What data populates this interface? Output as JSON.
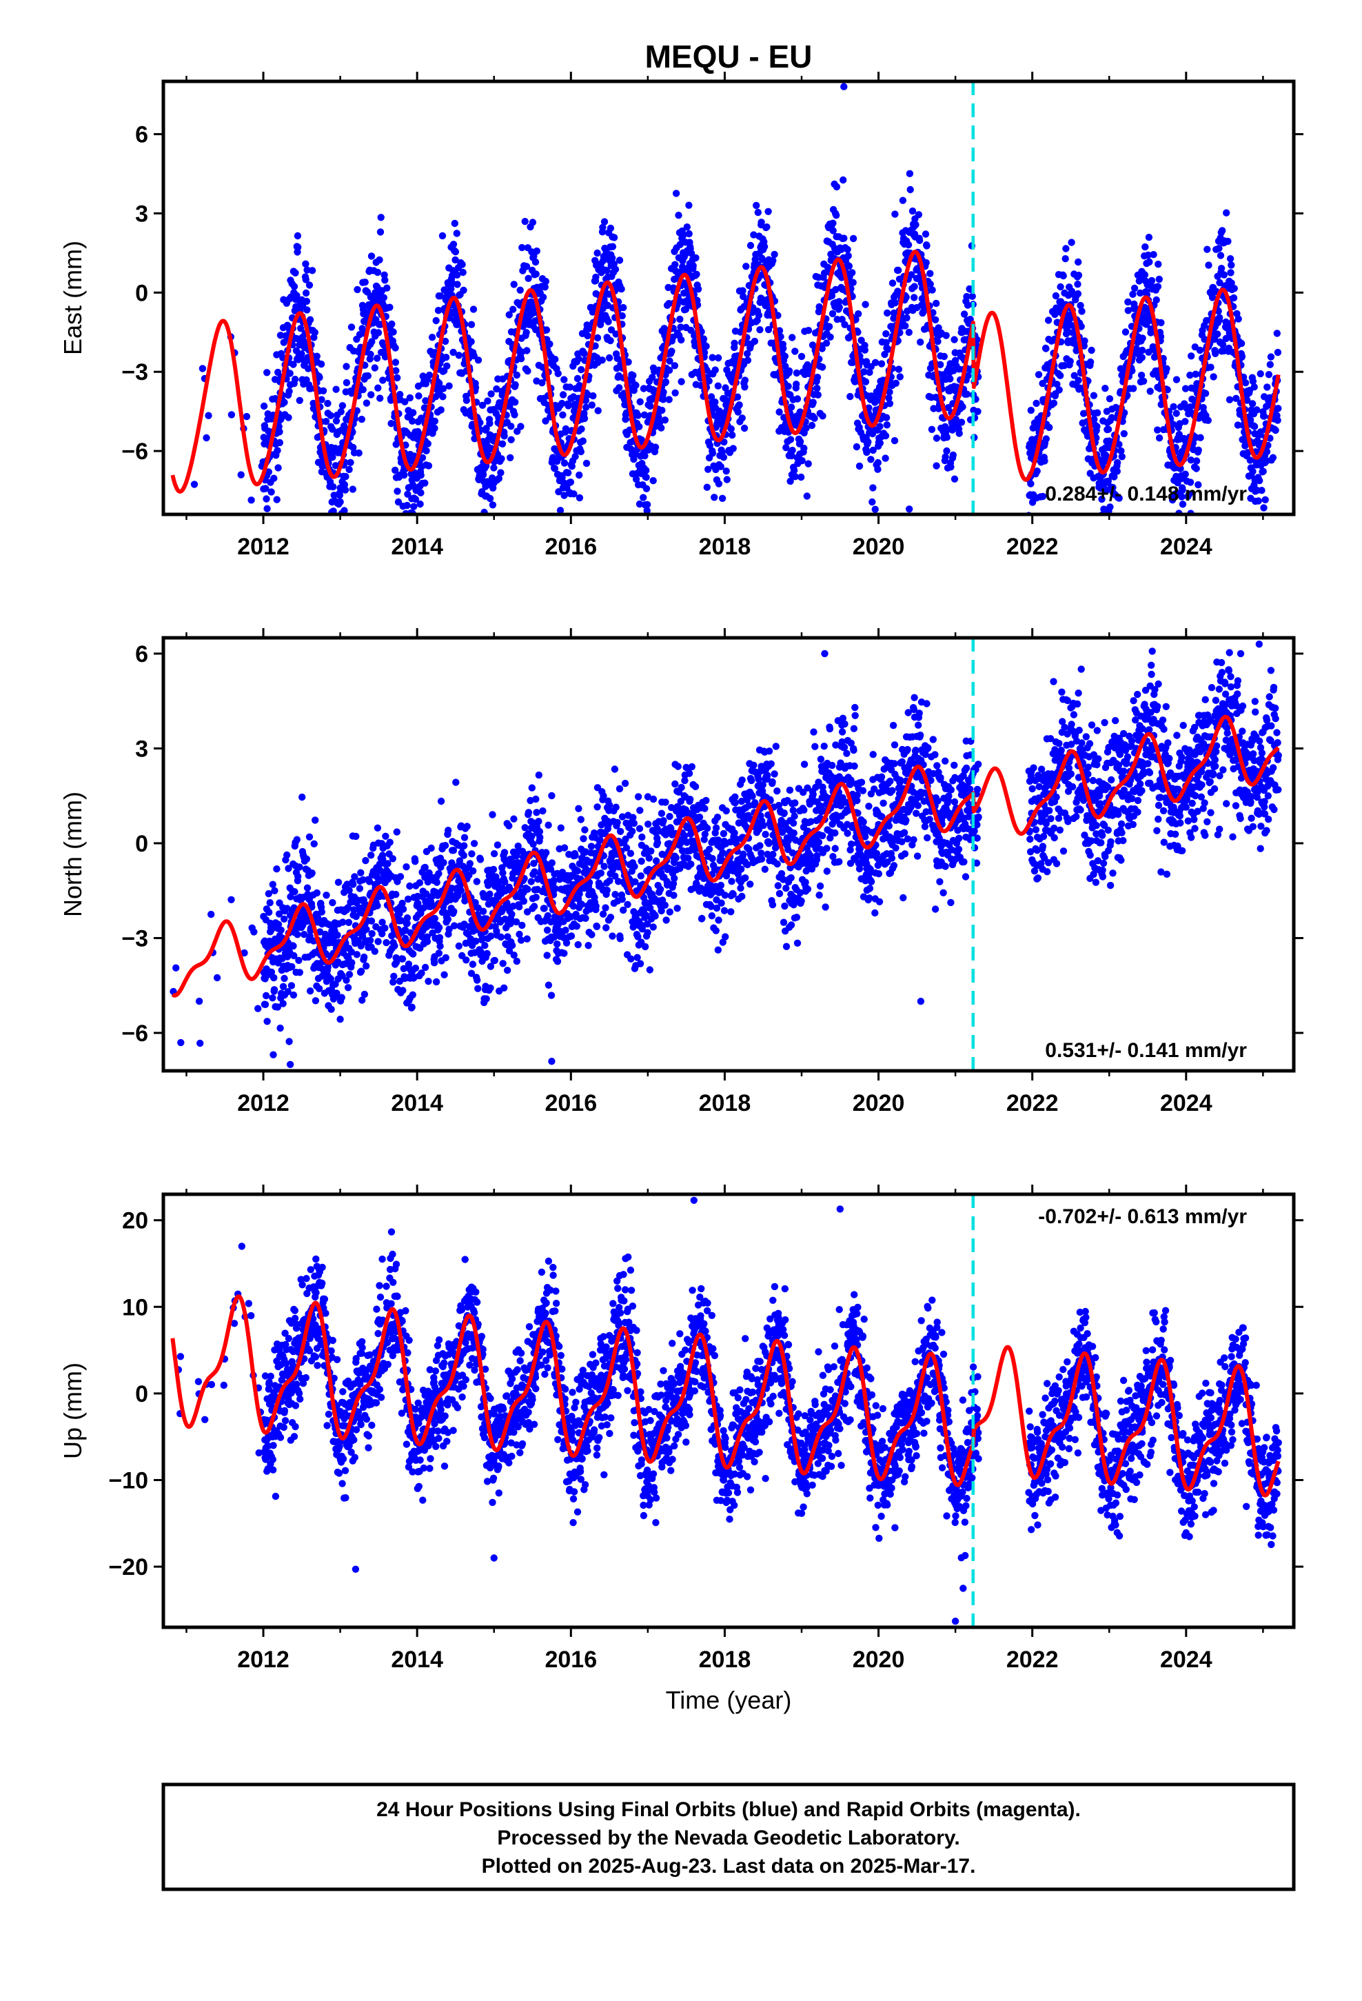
{
  "title": "MEQU - EU",
  "colors": {
    "data_points": "#0000ff",
    "model_fit": "#ff0000",
    "equipment_change": "#00e0e0",
    "frame": "#000000"
  },
  "chart_data": [
    {
      "type": "scatter",
      "component": "East",
      "ylabel": "East (mm)",
      "xlabel": "",
      "xlim": [
        2010.7,
        2025.4
      ],
      "ylim": [
        -8.4,
        8.0
      ],
      "xticks": [
        2012,
        2014,
        2016,
        2018,
        2020,
        2022,
        2024
      ],
      "yticks": [
        -6,
        -3,
        0,
        3,
        6
      ],
      "rate_text": "0.284+/- 0.148 mm/yr",
      "rate_position": "bottom-right",
      "break_year": 2021.23,
      "data_range": [
        2010.82,
        2025.2
      ],
      "data_gap": [
        2021.3,
        2021.95
      ],
      "sparse_before": 2012.0,
      "model": {
        "start_offset": -4.5,
        "slope": 0.284,
        "amplitude_start": 3.1,
        "amplitude_end": 3.2,
        "peak_phase": 0.45,
        "semiannual": 0.3,
        "break_offset": -2.6,
        "noise": 1.3,
        "points_per_year": 300
      },
      "outliers": [
        [
          2013.0,
          -7.4
        ],
        [
          2014.95,
          -7.8
        ],
        [
          2020.4,
          -8.2
        ],
        [
          2019.55,
          7.8
        ],
        [
          2024.9,
          -7.9
        ],
        [
          2023.9,
          -7.6
        ]
      ]
    },
    {
      "type": "scatter",
      "component": "North",
      "ylabel": "North (mm)",
      "xlabel": "",
      "xlim": [
        2010.7,
        2025.4
      ],
      "ylim": [
        -7.2,
        6.5
      ],
      "xticks": [
        2012,
        2014,
        2016,
        2018,
        2020,
        2022,
        2024
      ],
      "yticks": [
        -6,
        -3,
        0,
        3,
        6
      ],
      "rate_text": "0.531+/- 0.141 mm/yr",
      "rate_position": "bottom-right",
      "break_year": 2021.23,
      "data_range": [
        2010.82,
        2025.2
      ],
      "data_gap": [
        2021.3,
        2021.95
      ],
      "sparse_before": 2012.0,
      "model": {
        "start_offset": -3.9,
        "slope": 0.531,
        "amplitude_start": 0.8,
        "amplitude_end": 1.0,
        "peak_phase": 0.45,
        "semiannual": 0.35,
        "break_offset": -0.6,
        "noise": 1.1,
        "points_per_year": 300
      },
      "outliers": [
        [
          2012.35,
          -7.0
        ],
        [
          2015.75,
          -6.9
        ],
        [
          2020.55,
          -5.0
        ],
        [
          2019.3,
          6.0
        ],
        [
          2024.95,
          6.3
        ]
      ]
    },
    {
      "type": "scatter",
      "component": "Up",
      "ylabel": "Up (mm)",
      "xlabel": "Time (year)",
      "xlim": [
        2010.7,
        2025.4
      ],
      "ylim": [
        -27,
        23
      ],
      "xticks": [
        2012,
        2014,
        2016,
        2018,
        2020,
        2022,
        2024
      ],
      "yticks": [
        -20,
        -10,
        0,
        10,
        20
      ],
      "rate_text": "-0.702+/- 0.613 mm/yr",
      "rate_position": "top-right",
      "break_year": 2021.23,
      "data_range": [
        2010.82,
        2025.2
      ],
      "data_gap": [
        2021.3,
        2021.95
      ],
      "sparse_before": 2012.0,
      "model": {
        "start_offset": 3.6,
        "slope": -0.702,
        "amplitude_start": 6.5,
        "amplitude_end": 6.0,
        "peak_phase": 0.62,
        "semiannual": 2.5,
        "break_offset": 1.5,
        "noise": 3.2,
        "points_per_year": 300
      },
      "outliers": [
        [
          2013.2,
          -20.3
        ],
        [
          2021.0,
          -26.3
        ],
        [
          2021.1,
          -22.5
        ],
        [
          2017.6,
          22.3
        ],
        [
          2019.5,
          21.3
        ],
        [
          2015.0,
          -19.0
        ]
      ]
    }
  ],
  "footer": {
    "lines": [
      "24 Hour Positions Using Final Orbits (blue) and Rapid Orbits (magenta).",
      "Processed by the Nevada Geodetic Laboratory.",
      "Plotted on 2025-Aug-23. Last data on 2025-Mar-17."
    ]
  }
}
